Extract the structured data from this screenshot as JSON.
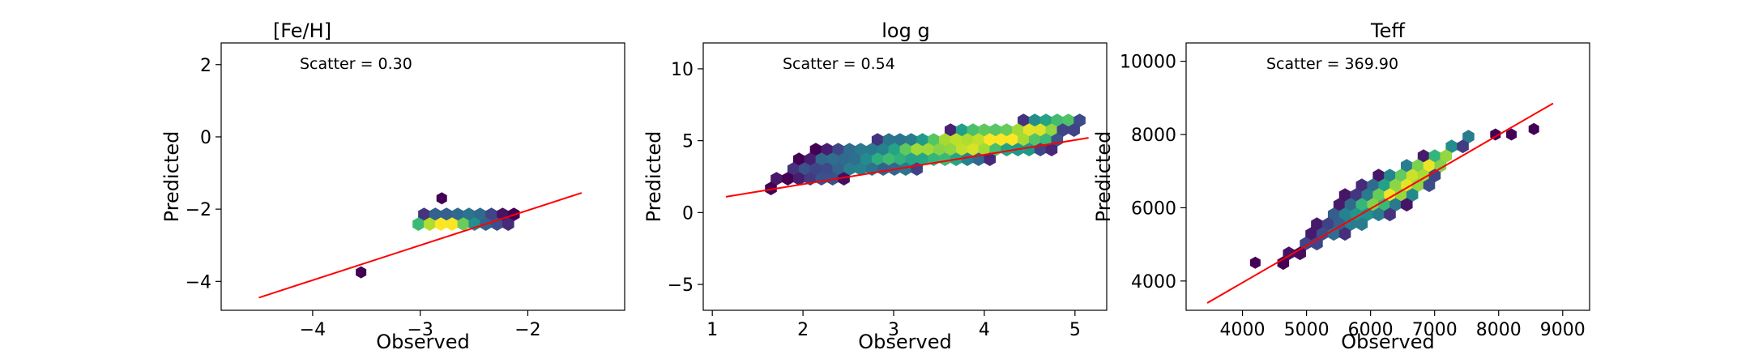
{
  "chart_data": [
    {
      "type": "hexbin",
      "title": "[Fe/H]",
      "xlabel": "Observed",
      "ylabel": "Predicted",
      "xlim": [
        -4.85,
        -1.1
      ],
      "ylim": [
        -4.8,
        2.6
      ],
      "xticks": [
        -4,
        -3,
        -2
      ],
      "yticks": [
        -4,
        -2,
        0,
        2
      ],
      "annotation": "Scatter = 0.30",
      "fit_line": {
        "x": [
          -4.5,
          -1.5
        ],
        "y": [
          -4.45,
          -1.55
        ],
        "color": "#ff0000"
      },
      "density": {
        "a": [
          -2.05,
          -2.1
        ],
        "b": [
          -2.95,
          -2.1
        ],
        "c": [
          -2.25,
          -2.6
        ],
        "sig": 0.55
      },
      "outliers": [
        [
          -3.55,
          -3.75
        ],
        [
          -2.8,
          -1.7
        ]
      ],
      "grid": false
    },
    {
      "type": "hexbin",
      "title": "log g",
      "xlabel": "Observed",
      "ylabel": "Predicted",
      "xlim": [
        0.9,
        5.35
      ],
      "ylim": [
        -6.8,
        11.8
      ],
      "xticks": [
        1,
        2,
        3,
        4,
        5
      ],
      "yticks": [
        -5,
        0,
        5,
        10
      ],
      "annotation": "Scatter = 0.54",
      "fit_line": {
        "x": [
          1.15,
          5.15
        ],
        "y": [
          1.1,
          5.2
        ],
        "color": "#ff0000"
      },
      "density": {
        "a": [
          1.55,
          1.5
        ],
        "b": [
          4.75,
          4.2
        ],
        "c": [
          2.05,
          4.5
        ],
        "sig": 0.65
      },
      "outliers": [],
      "grid": false
    },
    {
      "type": "hexbin",
      "title": "Teff",
      "xlabel": "Observed",
      "ylabel": "Predicted",
      "xlim": [
        3120,
        9420
      ],
      "ylim": [
        3200,
        10500
      ],
      "xticks": [
        4000,
        5000,
        6000,
        7000,
        8000,
        9000
      ],
      "yticks": [
        4000,
        6000,
        8000,
        10000
      ],
      "annotation": "Scatter = 369.90",
      "fit_line": {
        "x": [
          3450,
          8850
        ],
        "y": [
          3400,
          8850
        ],
        "color": "#ff0000"
      },
      "density": {
        "a": [
          4500,
          4350
        ],
        "b": [
          6650,
          6100
        ],
        "c": [
          5650,
          6500
        ],
        "sig": 0.55
      },
      "outliers": [
        [
          4200,
          4500
        ],
        [
          7950,
          8000
        ],
        [
          8200,
          8000
        ],
        [
          8550,
          8150
        ]
      ],
      "grid": false
    }
  ]
}
